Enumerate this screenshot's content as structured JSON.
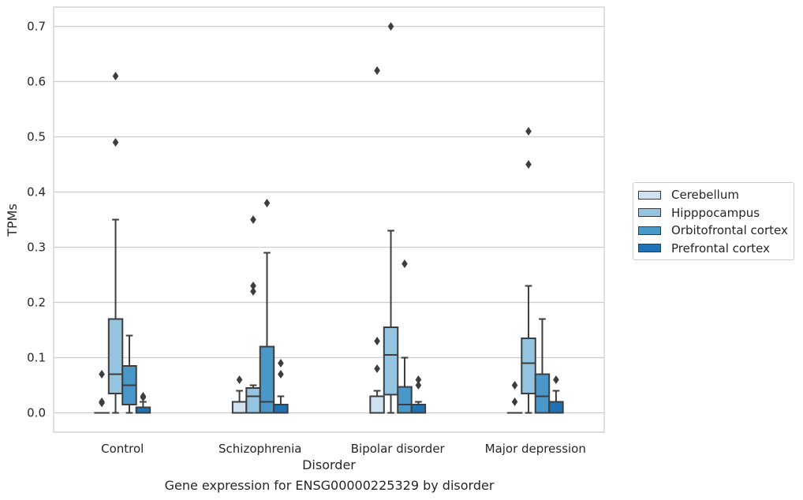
{
  "chart_data": {
    "type": "boxplot",
    "xlabel": "Disorder",
    "ylabel": "TPMs",
    "caption": "Gene expression for ENSG00000225329 by disorder",
    "categories": [
      "Control",
      "Schizophrenia",
      "Bipolar disorder",
      "Major depression"
    ],
    "ylim": [
      -0.035,
      0.735
    ],
    "yticks": [
      "0.0",
      "0.1",
      "0.2",
      "0.3",
      "0.4",
      "0.5",
      "0.6",
      "0.7"
    ],
    "grid": "horizontal",
    "legend_position": "center-right",
    "series": [
      {
        "name": "Cerebellum",
        "color": "#d0e1f2",
        "boxes": [
          {
            "q1": 0.0,
            "median": 0.0,
            "q3": 0.0,
            "whisker_low": 0.0,
            "whisker_high": 0.0,
            "outliers": [
              0.07,
              0.02,
              0.018
            ]
          },
          {
            "q1": 0.0,
            "median": 0.0,
            "q3": 0.02,
            "whisker_low": 0.0,
            "whisker_high": 0.04,
            "outliers": [
              0.06
            ]
          },
          {
            "q1": 0.0,
            "median": 0.0,
            "q3": 0.03,
            "whisker_low": 0.0,
            "whisker_high": 0.04,
            "outliers": [
              0.62,
              0.13,
              0.08
            ]
          },
          {
            "q1": 0.0,
            "median": 0.0,
            "q3": 0.0,
            "whisker_low": 0.0,
            "whisker_high": 0.0,
            "outliers": [
              0.05,
              0.02
            ]
          }
        ]
      },
      {
        "name": "Hipppocampus",
        "color": "#94c4df",
        "boxes": [
          {
            "q1": 0.035,
            "median": 0.07,
            "q3": 0.17,
            "whisker_low": 0.0,
            "whisker_high": 0.35,
            "outliers": [
              0.61,
              0.49
            ]
          },
          {
            "q1": 0.0,
            "median": 0.03,
            "q3": 0.045,
            "whisker_low": 0.0,
            "whisker_high": 0.05,
            "outliers": [
              0.35,
              0.23,
              0.22
            ]
          },
          {
            "q1": 0.033,
            "median": 0.105,
            "q3": 0.155,
            "whisker_low": 0.0,
            "whisker_high": 0.33,
            "outliers": [
              0.7
            ]
          },
          {
            "q1": 0.035,
            "median": 0.09,
            "q3": 0.135,
            "whisker_low": 0.0,
            "whisker_high": 0.23,
            "outliers": [
              0.51,
              0.45
            ]
          }
        ]
      },
      {
        "name": "Orbitofrontal cortex",
        "color": "#4a98c9",
        "boxes": [
          {
            "q1": 0.015,
            "median": 0.05,
            "q3": 0.085,
            "whisker_low": 0.0,
            "whisker_high": 0.14,
            "outliers": []
          },
          {
            "q1": 0.0,
            "median": 0.02,
            "q3": 0.12,
            "whisker_low": 0.0,
            "whisker_high": 0.29,
            "outliers": [
              0.38
            ]
          },
          {
            "q1": 0.0,
            "median": 0.015,
            "q3": 0.047,
            "whisker_low": 0.0,
            "whisker_high": 0.1,
            "outliers": [
              0.27
            ]
          },
          {
            "q1": 0.0,
            "median": 0.03,
            "q3": 0.07,
            "whisker_low": 0.0,
            "whisker_high": 0.17,
            "outliers": []
          }
        ]
      },
      {
        "name": "Prefrontal cortex",
        "color": "#2171b5",
        "boxes": [
          {
            "q1": 0.0,
            "median": 0.0,
            "q3": 0.01,
            "whisker_low": 0.0,
            "whisker_high": 0.02,
            "outliers": [
              0.03,
              0.028
            ]
          },
          {
            "q1": 0.0,
            "median": 0.0,
            "q3": 0.015,
            "whisker_low": 0.0,
            "whisker_high": 0.03,
            "outliers": [
              0.09,
              0.07
            ]
          },
          {
            "q1": 0.0,
            "median": 0.0,
            "q3": 0.015,
            "whisker_low": 0.0,
            "whisker_high": 0.02,
            "outliers": [
              0.06,
              0.05
            ]
          },
          {
            "q1": 0.0,
            "median": 0.0,
            "q3": 0.02,
            "whisker_low": 0.0,
            "whisker_high": 0.04,
            "outliers": [
              0.06
            ]
          }
        ]
      }
    ]
  }
}
